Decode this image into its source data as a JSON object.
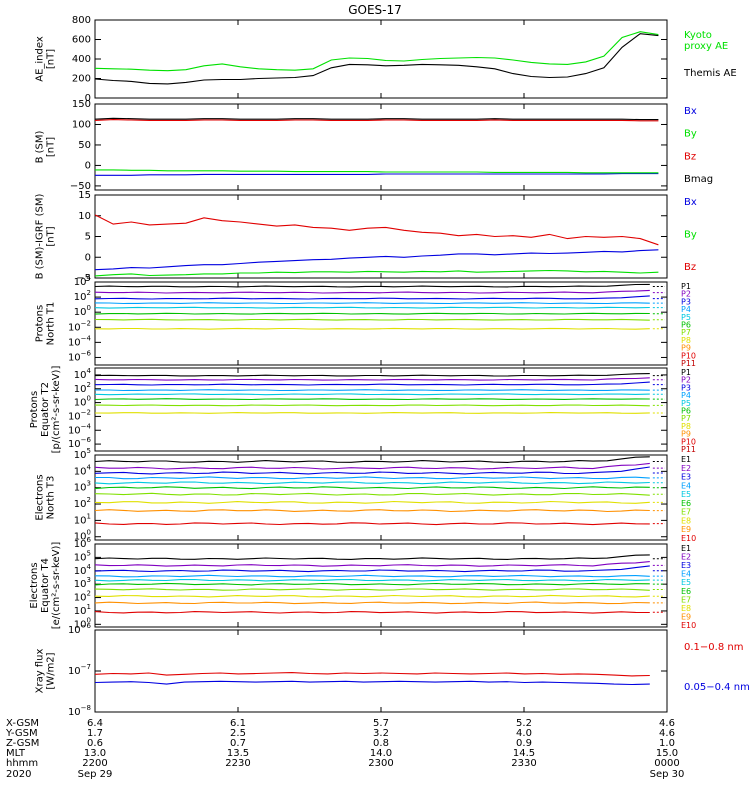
{
  "title": "GOES-17",
  "colors": {
    "black": "#000000",
    "green": "#00e000",
    "red": "#e00000",
    "blue": "#0000e0",
    "purple": "#8000c0",
    "cyan": "#00c8e0",
    "lime": "#40e040",
    "yellow": "#e0e000",
    "orange": "#ff9000",
    "darkred": "#c00000"
  },
  "chart_data": [
    {
      "type": "line",
      "ylabel_lines": [
        "AE_index",
        "[nT]"
      ],
      "ylim": [
        0,
        800
      ],
      "yticks": [
        {
          "v": 0,
          "label": "0"
        },
        {
          "v": 200,
          "label": "200"
        },
        {
          "v": 400,
          "label": "400"
        },
        {
          "v": 600,
          "label": "600"
        },
        {
          "v": 800,
          "label": "800"
        }
      ],
      "series": [
        {
          "name": "Kyoto proxy AE",
          "color": "#00e000",
          "values": [
            305,
            300,
            295,
            285,
            280,
            290,
            330,
            350,
            320,
            300,
            290,
            285,
            300,
            390,
            410,
            405,
            385,
            380,
            395,
            405,
            410,
            415,
            410,
            390,
            365,
            350,
            345,
            370,
            430,
            620,
            680,
            650
          ]
        },
        {
          "name": "Themis AE",
          "color": "#000000",
          "values": [
            195,
            180,
            170,
            150,
            145,
            160,
            185,
            190,
            190,
            200,
            205,
            210,
            230,
            310,
            345,
            340,
            330,
            335,
            345,
            340,
            335,
            320,
            300,
            250,
            220,
            210,
            215,
            250,
            310,
            520,
            660,
            640
          ]
        }
      ],
      "legend": [
        {
          "lines": [
            "Kyoto",
            "proxy AE"
          ],
          "color": "#00e000"
        },
        {
          "lines": [
            "Themis AE"
          ],
          "color": "#000000"
        }
      ]
    },
    {
      "type": "line",
      "ylabel_lines": [
        "B (SM)",
        "[nT]"
      ],
      "ylim": [
        -60,
        150
      ],
      "yticks": [
        {
          "v": -50,
          "label": "−50"
        },
        {
          "v": 0,
          "label": "0"
        },
        {
          "v": 50,
          "label": "50"
        },
        {
          "v": 100,
          "label": "100"
        },
        {
          "v": 150,
          "label": "150"
        }
      ],
      "series": [
        {
          "name": "Bx",
          "color": "#0000e0",
          "values": [
            -24,
            -24,
            -24,
            -23,
            -23,
            -23,
            -22,
            -22,
            -22,
            -22,
            -22,
            -22,
            -22,
            -22,
            -22,
            -22,
            -21,
            -21,
            -21,
            -21,
            -21,
            -21,
            -21,
            -21,
            -21,
            -21,
            -21,
            -21,
            -21,
            -20,
            -20,
            -20
          ]
        },
        {
          "name": "By",
          "color": "#00e000",
          "values": [
            -11,
            -11,
            -12,
            -12,
            -13,
            -13,
            -13,
            -13,
            -14,
            -14,
            -14,
            -15,
            -15,
            -15,
            -15,
            -15,
            -16,
            -16,
            -16,
            -16,
            -16,
            -16,
            -17,
            -17,
            -17,
            -17,
            -17,
            -18,
            -18,
            -18,
            -18,
            -18
          ]
        },
        {
          "name": "Bz",
          "color": "#e00000",
          "values": [
            110,
            112,
            111,
            110,
            110,
            110,
            111,
            111,
            110,
            110,
            110,
            111,
            111,
            110,
            110,
            110,
            111,
            111,
            110,
            110,
            110,
            110,
            111,
            110,
            110,
            110,
            110,
            110,
            110,
            110,
            109,
            109
          ]
        },
        {
          "name": "Bmag",
          "color": "#000000",
          "values": [
            113,
            115,
            114,
            113,
            113,
            113,
            114,
            114,
            113,
            113,
            113,
            114,
            114,
            113,
            113,
            113,
            114,
            114,
            113,
            113,
            113,
            113,
            114,
            113,
            113,
            113,
            113,
            113,
            113,
            113,
            112,
            112
          ]
        }
      ],
      "legend": [
        {
          "lines": [
            "Bx"
          ],
          "color": "#0000e0"
        },
        {
          "lines": [
            "By"
          ],
          "color": "#00e000"
        },
        {
          "lines": [
            "Bz"
          ],
          "color": "#e00000"
        },
        {
          "lines": [
            "Bmag"
          ],
          "color": "#000000"
        }
      ]
    },
    {
      "type": "line",
      "ylabel_lines": [
        "B (SM)-IGRF (SM)",
        "[nT]"
      ],
      "ylim": [
        -5,
        15
      ],
      "yticks": [
        {
          "v": -5,
          "label": "−5"
        },
        {
          "v": 0,
          "label": "0"
        },
        {
          "v": 5,
          "label": "5"
        },
        {
          "v": 10,
          "label": "10"
        },
        {
          "v": 15,
          "label": "15"
        }
      ],
      "series": [
        {
          "name": "Bx",
          "color": "#0000e0",
          "values": [
            -3.0,
            -2.8,
            -2.5,
            -2.6,
            -2.3,
            -2.0,
            -1.8,
            -1.8,
            -1.5,
            -1.2,
            -1.0,
            -0.8,
            -0.6,
            -0.5,
            -0.2,
            0.0,
            0.2,
            0.0,
            0.3,
            0.5,
            0.8,
            0.8,
            0.6,
            0.8,
            1.0,
            0.9,
            1.0,
            1.2,
            1.4,
            1.3,
            1.6,
            1.8
          ]
        },
        {
          "name": "By",
          "color": "#00e000",
          "values": [
            -4.5,
            -4.2,
            -4.0,
            -4.4,
            -4.3,
            -4.2,
            -4.0,
            -4.0,
            -3.8,
            -3.8,
            -3.6,
            -3.7,
            -3.5,
            -3.5,
            -3.6,
            -3.4,
            -3.5,
            -3.6,
            -3.4,
            -3.5,
            -3.3,
            -3.6,
            -3.5,
            -3.4,
            -3.3,
            -3.2,
            -3.3,
            -3.5,
            -3.4,
            -3.6,
            -3.8,
            -3.6
          ]
        },
        {
          "name": "Bz",
          "color": "#e00000",
          "values": [
            10.2,
            8.0,
            8.5,
            7.8,
            8.0,
            8.2,
            9.5,
            8.8,
            8.5,
            8.0,
            7.5,
            7.8,
            7.2,
            7.0,
            6.5,
            7.0,
            7.2,
            6.5,
            6.0,
            5.8,
            5.2,
            5.5,
            5.0,
            5.2,
            4.8,
            5.5,
            4.5,
            5.0,
            4.8,
            5.0,
            4.5,
            3.0
          ]
        }
      ],
      "legend": [
        {
          "lines": [
            "Bx"
          ],
          "color": "#0000e0"
        },
        {
          "lines": [
            "By"
          ],
          "color": "#00e000"
        },
        {
          "lines": [
            "Bz"
          ],
          "color": "#e00000"
        }
      ]
    },
    {
      "type": "line",
      "log": true,
      "ylabel_lines": [
        "Protons",
        "North T1"
      ],
      "ylim": [
        -7,
        4
      ],
      "yticks": [
        {
          "v": -6,
          "base": "10",
          "exp": "−6"
        },
        {
          "v": -4,
          "base": "10",
          "exp": "−4"
        },
        {
          "v": -2,
          "base": "10",
          "exp": "−2"
        },
        {
          "v": 0,
          "base": "10",
          "exp": "0"
        },
        {
          "v": 2,
          "base": "10",
          "exp": "2"
        },
        {
          "v": 4,
          "base": "10",
          "exp": "4"
        }
      ],
      "channels": [
        {
          "name": "P1",
          "color": "#000000",
          "level": 3.4
        },
        {
          "name": "P2",
          "color": "#8000c0",
          "level": 2.6
        },
        {
          "name": "P3",
          "color": "#0000e0",
          "level": 1.8
        },
        {
          "name": "P4",
          "color": "#00a0ff",
          "level": 1.2
        },
        {
          "name": "P5",
          "color": "#00c8e0",
          "level": 0.6
        },
        {
          "name": "P6",
          "color": "#00c000",
          "level": -0.2
        },
        {
          "name": "P7",
          "color": "#80e000",
          "level": -1.0
        },
        {
          "name": "P8",
          "color": "#e0e000",
          "level": -2.2
        },
        {
          "name": "P9",
          "color": "#ff9000"
        },
        {
          "name": "P10",
          "color": "#e00000"
        },
        {
          "name": "P11",
          "color": "#c00000"
        }
      ]
    },
    {
      "type": "line",
      "log": true,
      "ylabel_lines": [
        "Protons",
        "Equator T2",
        "[p/(cm²-s-sr-keV)]"
      ],
      "ylim": [
        -7,
        5
      ],
      "yticks": [
        {
          "v": -6,
          "base": "10",
          "exp": "−6"
        },
        {
          "v": -4,
          "base": "10",
          "exp": "−4"
        },
        {
          "v": -2,
          "base": "10",
          "exp": "−2"
        },
        {
          "v": 0,
          "base": "10",
          "exp": "0"
        },
        {
          "v": 2,
          "base": "10",
          "exp": "2"
        },
        {
          "v": 4,
          "base": "10",
          "exp": "4"
        }
      ],
      "channels": [
        {
          "name": "P1",
          "color": "#000000",
          "level": 3.9
        },
        {
          "name": "P2",
          "color": "#8000c0",
          "level": 3.3
        },
        {
          "name": "P3",
          "color": "#0000e0",
          "level": 2.6
        },
        {
          "name": "P4",
          "color": "#00a0ff",
          "level": 1.8
        },
        {
          "name": "P5",
          "color": "#00c8e0",
          "level": 1.2
        },
        {
          "name": "P6",
          "color": "#00c000",
          "level": 0.5
        },
        {
          "name": "P7",
          "color": "#80e000",
          "level": -0.4
        },
        {
          "name": "P8",
          "color": "#e0e000",
          "level": -1.5
        },
        {
          "name": "P9",
          "color": "#ff9000"
        },
        {
          "name": "P10",
          "color": "#e00000"
        },
        {
          "name": "P11",
          "color": "#c00000"
        }
      ]
    },
    {
      "type": "line",
      "log": true,
      "ylabel_lines": [
        "Electrons",
        "North T3"
      ],
      "ylim": [
        -0.2,
        5
      ],
      "yticks": [
        {
          "v": 0,
          "base": "10",
          "exp": "0"
        },
        {
          "v": 1,
          "base": "10",
          "exp": "1"
        },
        {
          "v": 2,
          "base": "10",
          "exp": "2"
        },
        {
          "v": 3,
          "base": "10",
          "exp": "3"
        },
        {
          "v": 4,
          "base": "10",
          "exp": "4"
        },
        {
          "v": 5,
          "base": "10",
          "exp": "5"
        }
      ],
      "channels": [
        {
          "name": "E1",
          "color": "#000000",
          "level": 4.6
        },
        {
          "name": "E2",
          "color": "#8000c0",
          "level": 4.2
        },
        {
          "name": "E3",
          "color": "#0000e0",
          "level": 3.9
        },
        {
          "name": "E4",
          "color": "#00a0ff",
          "level": 3.6
        },
        {
          "name": "E5",
          "color": "#00c8e0",
          "level": 3.3
        },
        {
          "name": "E6",
          "color": "#00c000",
          "level": 3.0
        },
        {
          "name": "E7",
          "color": "#80e000",
          "level": 2.6
        },
        {
          "name": "E8",
          "color": "#e0e000",
          "level": 2.1
        },
        {
          "name": "E9",
          "color": "#ff9000",
          "level": 1.6
        },
        {
          "name": "E10",
          "color": "#e00000",
          "level": 0.8
        }
      ]
    },
    {
      "type": "line",
      "log": true,
      "ylabel_lines": [
        "Electrons",
        "Equator T4",
        "[e/(cm²-s-sr-keV)]"
      ],
      "ylim": [
        -0.2,
        6
      ],
      "yticks": [
        {
          "v": 0,
          "base": "10",
          "exp": "0"
        },
        {
          "v": 1,
          "base": "10",
          "exp": "1"
        },
        {
          "v": 2,
          "base": "10",
          "exp": "2"
        },
        {
          "v": 3,
          "base": "10",
          "exp": "3"
        },
        {
          "v": 4,
          "base": "10",
          "exp": "4"
        },
        {
          "v": 5,
          "base": "10",
          "exp": "5"
        },
        {
          "v": 6,
          "base": "10",
          "exp": "6"
        }
      ],
      "channels": [
        {
          "name": "E1",
          "color": "#000000",
          "level": 4.9
        },
        {
          "name": "E2",
          "color": "#8000c0",
          "level": 4.4
        },
        {
          "name": "E3",
          "color": "#0000e0",
          "level": 4.0
        },
        {
          "name": "E4",
          "color": "#00a0ff",
          "level": 3.6
        },
        {
          "name": "E5",
          "color": "#00c8e0",
          "level": 3.3
        },
        {
          "name": "E6",
          "color": "#00c000",
          "level": 3.0
        },
        {
          "name": "E7",
          "color": "#80e000",
          "level": 2.6
        },
        {
          "name": "E8",
          "color": "#e0e000",
          "level": 2.1
        },
        {
          "name": "E9",
          "color": "#ff9000",
          "level": 1.6
        },
        {
          "name": "E10",
          "color": "#e00000",
          "level": 0.9
        }
      ]
    },
    {
      "type": "line",
      "log": true,
      "ylabel_lines": [
        "Xray flux",
        "[W/m2]"
      ],
      "ylim": [
        -8,
        -6
      ],
      "yticks": [
        {
          "v": -8,
          "base": "10",
          "exp": "−8"
        },
        {
          "v": -7,
          "base": "10",
          "exp": "−7"
        },
        {
          "v": -6,
          "base": "10",
          "exp": "−6"
        }
      ],
      "series": [
        {
          "name": "0.1-0.8 nm",
          "color": "#e00000",
          "values": [
            -7.08,
            -7.06,
            -7.07,
            -7.05,
            -7.1,
            -7.08,
            -7.06,
            -7.05,
            -7.07,
            -7.06,
            -7.05,
            -7.04,
            -7.06,
            -7.07,
            -7.05,
            -7.06,
            -7.05,
            -7.06,
            -7.07,
            -7.05,
            -7.06,
            -7.07,
            -7.06,
            -7.05,
            -7.07,
            -7.06,
            -7.08,
            -7.07,
            -7.08,
            -7.1,
            -7.12,
            -7.11
          ]
        },
        {
          "name": "0.05-0.4 nm",
          "color": "#0000e0",
          "values": [
            -7.28,
            -7.27,
            -7.26,
            -7.28,
            -7.32,
            -7.27,
            -7.26,
            -7.25,
            -7.26,
            -7.27,
            -7.26,
            -7.25,
            -7.27,
            -7.26,
            -7.25,
            -7.27,
            -7.26,
            -7.25,
            -7.26,
            -7.27,
            -7.26,
            -7.25,
            -7.27,
            -7.26,
            -7.28,
            -7.27,
            -7.28,
            -7.29,
            -7.3,
            -7.32,
            -7.33,
            -7.32
          ]
        }
      ],
      "legend": [
        {
          "lines": [
            "0.1−0.8 nm"
          ],
          "color": "#e00000"
        },
        {
          "lines": [
            "0.05−0.4 nm"
          ],
          "color": "#0000e0"
        }
      ]
    }
  ],
  "ephemeris": {
    "row_labels": [
      "X-GSM",
      "Y-GSM",
      "Z-GSM",
      "MLT",
      "hhmm",
      "2020"
    ],
    "columns": [
      [
        "6.4",
        "1.7",
        "0.6",
        "13.0",
        "2200",
        "Sep 29"
      ],
      [
        "6.1",
        "2.5",
        "0.7",
        "13.5",
        "2230",
        ""
      ],
      [
        "5.7",
        "3.2",
        "0.8",
        "14.0",
        "2300",
        ""
      ],
      [
        "5.2",
        "4.0",
        "0.9",
        "14.5",
        "2330",
        ""
      ],
      [
        "4.6",
        "4.6",
        "1.0",
        "15.0",
        "0000",
        "Sep 30"
      ]
    ]
  }
}
